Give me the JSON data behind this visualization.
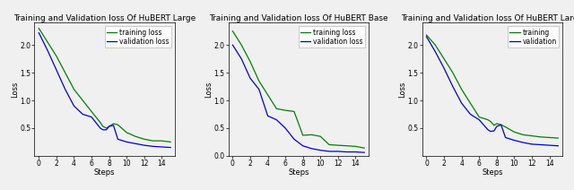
{
  "subplots": [
    {
      "title": "Training and Validation loss Of HuBERT Large",
      "xlabel": "Steps",
      "ylabel": "Loss",
      "xlim": [
        -0.5,
        15.5
      ],
      "ylim": [
        0,
        2.4
      ],
      "yticks": [
        0.5,
        1.0,
        1.5,
        2.0
      ],
      "xticks": [
        0,
        2,
        4,
        6,
        8,
        10,
        12,
        14
      ],
      "train_x": [
        0,
        1,
        2,
        3,
        4,
        5,
        6,
        7,
        7.3,
        7.7,
        8,
        8.5,
        9,
        10,
        11,
        12,
        13,
        14,
        15
      ],
      "train_y": [
        2.3,
        2.05,
        1.8,
        1.5,
        1.2,
        1.0,
        0.8,
        0.6,
        0.53,
        0.5,
        0.53,
        0.58,
        0.56,
        0.42,
        0.35,
        0.3,
        0.27,
        0.27,
        0.25
      ],
      "val_x": [
        0,
        1,
        2,
        3,
        4,
        5,
        6,
        7,
        7.3,
        7.7,
        8,
        8.5,
        9,
        10,
        11,
        12,
        13,
        14,
        15
      ],
      "val_y": [
        2.22,
        1.9,
        1.55,
        1.2,
        0.9,
        0.75,
        0.7,
        0.5,
        0.47,
        0.47,
        0.53,
        0.55,
        0.3,
        0.25,
        0.22,
        0.19,
        0.17,
        0.16,
        0.15
      ],
      "legend_labels": [
        "training loss",
        "validation loss"
      ]
    },
    {
      "title": "Training and Validation loss Of HuBERT Base",
      "xlabel": "Steps",
      "ylabel": "Loss",
      "xlim": [
        -0.5,
        15.5
      ],
      "ylim": [
        0.0,
        2.4
      ],
      "yticks": [
        0.0,
        0.5,
        1.0,
        1.5,
        2.0
      ],
      "xticks": [
        0,
        2,
        4,
        6,
        8,
        10,
        12,
        14
      ],
      "train_x": [
        0,
        1,
        2,
        3,
        4,
        5,
        6,
        7,
        8,
        9,
        10,
        11,
        12,
        13,
        14,
        15
      ],
      "train_y": [
        2.25,
        2.0,
        1.7,
        1.35,
        1.1,
        0.85,
        0.82,
        0.8,
        0.37,
        0.38,
        0.35,
        0.2,
        0.19,
        0.18,
        0.17,
        0.14
      ],
      "val_x": [
        0,
        1,
        2,
        3,
        4,
        5,
        6,
        7,
        8,
        9,
        10,
        11,
        12,
        13,
        14,
        15
      ],
      "val_y": [
        2.0,
        1.75,
        1.4,
        1.2,
        0.72,
        0.65,
        0.5,
        0.3,
        0.18,
        0.13,
        0.1,
        0.08,
        0.08,
        0.07,
        0.07,
        0.06
      ],
      "legend_labels": [
        "training loss",
        "validation loss"
      ]
    },
    {
      "title": "Training and Validation loss Of HuBERT Large",
      "xlabel": "Steps",
      "ylabel": "Loss",
      "xlim": [
        -0.5,
        15.5
      ],
      "ylim": [
        0,
        2.4
      ],
      "yticks": [
        0.5,
        1.0,
        1.5,
        2.0
      ],
      "xticks": [
        0,
        2,
        4,
        6,
        8,
        10,
        12,
        14
      ],
      "train_x": [
        0,
        1,
        2,
        3,
        4,
        5,
        6,
        7,
        7.3,
        7.7,
        8,
        8.5,
        9,
        10,
        11,
        12,
        13,
        14,
        15
      ],
      "train_y": [
        2.18,
        2.0,
        1.75,
        1.5,
        1.2,
        0.95,
        0.7,
        0.65,
        0.62,
        0.55,
        0.58,
        0.56,
        0.52,
        0.43,
        0.38,
        0.36,
        0.34,
        0.33,
        0.32
      ],
      "val_x": [
        0,
        1,
        2,
        3,
        4,
        5,
        6,
        7,
        7.3,
        7.7,
        8,
        8.5,
        9,
        10,
        11,
        12,
        13,
        14,
        15
      ],
      "val_y": [
        2.15,
        1.88,
        1.58,
        1.25,
        0.95,
        0.75,
        0.65,
        0.47,
        0.44,
        0.45,
        0.53,
        0.56,
        0.33,
        0.28,
        0.24,
        0.21,
        0.2,
        0.19,
        0.18
      ],
      "legend_labels": [
        "training",
        "validation"
      ]
    }
  ],
  "train_color": "#008000",
  "val_color": "#0000cd",
  "line_width": 0.9,
  "bg_color": "#f0f0f0",
  "font_size_title": 6.5,
  "font_size_label": 6.0,
  "font_size_tick": 5.5,
  "font_size_legend": 5.5
}
